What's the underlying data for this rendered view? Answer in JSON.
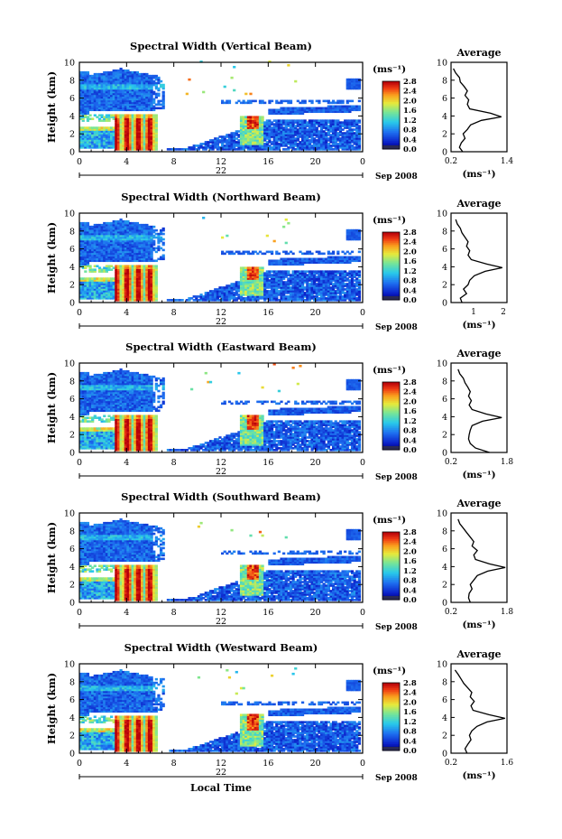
{
  "figure": {
    "date_label": "Sep 2008",
    "day_label": "22",
    "local_time_label": "Local Time",
    "colorbar_unit": "(ms⁻¹)",
    "colorbar_ticks": [
      "0.0",
      "0.4",
      "0.8",
      "1.2",
      "1.6",
      "2.0",
      "2.4",
      "2.8"
    ],
    "avg_title": "Average",
    "avg_unit_label": "(ms⁻¹)",
    "ylabel": "Height (km)"
  },
  "chart_data": [
    {
      "type": "heatmap",
      "title": "Spectral Width (Vertical Beam)",
      "ylabel": "Height (km)",
      "xlim": [
        0,
        24
      ],
      "ylim": [
        0,
        10
      ],
      "xticks": [
        "0",
        "4",
        "8",
        "12",
        "16",
        "20",
        "0"
      ],
      "yticks": [
        "0",
        "2",
        "4",
        "6",
        "8",
        "10"
      ],
      "colorbar": {
        "label": "(ms⁻¹)",
        "range": [
          0,
          2.8
        ],
        "ticks": [
          "0.0",
          "0.4",
          "0.8",
          "1.2",
          "1.6",
          "2.0",
          "2.4",
          "2.8"
        ]
      },
      "average_profile": {
        "title": "Average",
        "xlabel": "(ms⁻¹)",
        "xlim": [
          0.2,
          1.4
        ],
        "xticks": [
          "0.2",
          "1.4"
        ],
        "heights": [
          0,
          0.5,
          1,
          1.5,
          2,
          2.5,
          3,
          3.5,
          3.9,
          4.3,
          4.8,
          5.3,
          5.8,
          6.3,
          6.8,
          7.3,
          7.8,
          8.3,
          8.8,
          9.3
        ],
        "values": [
          0.45,
          0.38,
          0.42,
          0.5,
          0.46,
          0.55,
          0.62,
          0.85,
          1.28,
          1.05,
          0.6,
          0.55,
          0.58,
          0.5,
          0.55,
          0.48,
          0.4,
          0.38,
          0.3,
          0.25
        ]
      }
    },
    {
      "type": "heatmap",
      "title": "Spectral Width (Northward Beam)",
      "ylabel": "Height (km)",
      "xlim": [
        0,
        24
      ],
      "ylim": [
        0,
        10
      ],
      "xticks": [
        "0",
        "4",
        "8",
        "12",
        "16",
        "20",
        "0"
      ],
      "yticks": [
        "0",
        "2",
        "4",
        "6",
        "8",
        "10"
      ],
      "colorbar": {
        "label": "(ms⁻¹)",
        "range": [
          0,
          2.8
        ],
        "ticks": [
          "0.0",
          "0.4",
          "0.8",
          "1.2",
          "1.6",
          "2.0",
          "2.4",
          "2.8"
        ]
      },
      "average_profile": {
        "title": "Average",
        "xlabel": "(ms⁻¹)",
        "xlim": [
          0.2,
          2.0
        ],
        "xticks": [
          "1",
          "2"
        ],
        "heights": [
          0,
          0.5,
          1,
          1.5,
          2,
          2.5,
          3,
          3.5,
          3.9,
          4.3,
          4.8,
          5.3,
          5.8,
          6.3,
          6.8,
          7.3,
          7.8,
          8.3,
          8.8,
          9.3
        ],
        "values": [
          0.55,
          0.5,
          0.7,
          0.6,
          0.75,
          0.8,
          0.95,
          1.3,
          1.85,
          1.35,
          0.85,
          0.75,
          0.8,
          0.7,
          0.75,
          0.65,
          0.55,
          0.5,
          0.4,
          0.35
        ]
      }
    },
    {
      "type": "heatmap",
      "title": "Spectral Width (Eastward Beam)",
      "ylabel": "Height (km)",
      "xlim": [
        0,
        24
      ],
      "ylim": [
        0,
        10
      ],
      "xticks": [
        "0",
        "4",
        "8",
        "12",
        "16",
        "20",
        "0"
      ],
      "yticks": [
        "0",
        "2",
        "4",
        "6",
        "8",
        "10"
      ],
      "colorbar": {
        "label": "(ms⁻¹)",
        "range": [
          0,
          2.8
        ],
        "ticks": [
          "0.0",
          "0.4",
          "0.8",
          "1.2",
          "1.6",
          "2.0",
          "2.4",
          "2.8"
        ]
      },
      "average_profile": {
        "title": "Average",
        "xlabel": "(ms⁻¹)",
        "xlim": [
          0.2,
          1.8
        ],
        "xticks": [
          "0.2",
          "1.8"
        ],
        "heights": [
          0,
          0.5,
          1,
          1.5,
          2,
          2.5,
          3,
          3.5,
          3.9,
          4.3,
          4.8,
          5.3,
          5.8,
          6.3,
          6.8,
          7.3,
          7.8,
          8.3,
          8.8,
          9.3
        ],
        "values": [
          1.3,
          0.9,
          0.75,
          0.7,
          0.72,
          0.75,
          0.8,
          1.1,
          1.65,
          1.2,
          0.8,
          0.72,
          0.78,
          0.7,
          0.75,
          0.68,
          0.6,
          0.55,
          0.45,
          0.4
        ]
      }
    },
    {
      "type": "heatmap",
      "title": "Spectral Width (Southward Beam)",
      "ylabel": "Height (km)",
      "xlim": [
        0,
        24
      ],
      "ylim": [
        0,
        10
      ],
      "xticks": [
        "0",
        "4",
        "8",
        "12",
        "16",
        "20",
        "0"
      ],
      "yticks": [
        "0",
        "2",
        "4",
        "6",
        "8",
        "10"
      ],
      "colorbar": {
        "label": "(ms⁻¹)",
        "range": [
          0,
          2.8
        ],
        "ticks": [
          "0.0",
          "0.4",
          "0.8",
          "1.2",
          "1.6",
          "2.0",
          "2.4",
          "2.8"
        ]
      },
      "average_profile": {
        "title": "Average",
        "xlabel": "(ms⁻¹)",
        "xlim": [
          0.2,
          1.8
        ],
        "xticks": [
          "0.2",
          "1.8"
        ],
        "heights": [
          0,
          0.5,
          1,
          1.5,
          2,
          2.5,
          3,
          3.5,
          3.9,
          4.3,
          4.8,
          5.3,
          5.8,
          6.3,
          6.8,
          7.3,
          7.8,
          8.3,
          8.8,
          9.3
        ],
        "values": [
          0.75,
          0.7,
          0.72,
          0.8,
          0.75,
          0.85,
          0.95,
          1.25,
          1.75,
          1.3,
          0.9,
          0.85,
          0.95,
          0.8,
          0.85,
          0.75,
          0.65,
          0.55,
          0.45,
          0.4
        ]
      }
    },
    {
      "type": "heatmap",
      "title": "Spectral Width (Westward Beam)",
      "ylabel": "Height (km)",
      "xlabel": "Local Time",
      "xlim": [
        0,
        24
      ],
      "ylim": [
        0,
        10
      ],
      "xticks": [
        "0",
        "4",
        "8",
        "12",
        "16",
        "20",
        "0"
      ],
      "yticks": [
        "0",
        "2",
        "4",
        "6",
        "8",
        "10"
      ],
      "colorbar": {
        "label": "(ms⁻¹)",
        "range": [
          0,
          2.8
        ],
        "ticks": [
          "0.0",
          "0.4",
          "0.8",
          "1.2",
          "1.6",
          "2.0",
          "2.4",
          "2.8"
        ]
      },
      "average_profile": {
        "title": "Average",
        "xlabel": "(ms⁻¹)",
        "xlim": [
          0.2,
          1.6
        ],
        "xticks": [
          "0.2",
          "1.6"
        ],
        "heights": [
          0,
          0.5,
          1,
          1.5,
          2,
          2.5,
          3,
          3.5,
          3.9,
          4.3,
          4.8,
          5.3,
          5.8,
          6.3,
          6.8,
          7.3,
          7.8,
          8.3,
          8.8,
          9.3
        ],
        "values": [
          0.6,
          0.55,
          0.62,
          0.7,
          0.66,
          0.72,
          0.85,
          1.1,
          1.55,
          1.15,
          0.75,
          0.7,
          0.78,
          0.68,
          0.72,
          0.62,
          0.52,
          0.45,
          0.38,
          0.3
        ]
      }
    }
  ]
}
